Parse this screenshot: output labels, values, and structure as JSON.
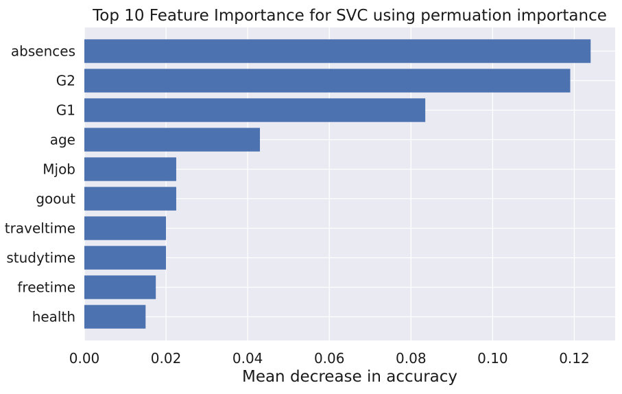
{
  "chart_data": {
    "type": "bar",
    "orientation": "horizontal",
    "title": "Top 10 Feature Importance for SVC using permuation importance",
    "xlabel": "Mean decrease in accuracy",
    "ylabel": "",
    "categories": [
      "absences",
      "G2",
      "G1",
      "age",
      "Mjob",
      "goout",
      "traveltime",
      "studytime",
      "freetime",
      "health"
    ],
    "values": [
      0.124,
      0.119,
      0.0835,
      0.043,
      0.0225,
      0.0225,
      0.02,
      0.02,
      0.0175,
      0.015
    ],
    "xlim": [
      0,
      0.13
    ],
    "xticks": [
      0.0,
      0.02,
      0.04,
      0.06,
      0.08,
      0.1,
      0.12
    ],
    "xtick_labels": [
      "0.00",
      "0.02",
      "0.04",
      "0.06",
      "0.08",
      "0.10",
      "0.12"
    ],
    "grid": true,
    "legend": "none",
    "colors": {
      "bar": "#4c72b0",
      "background": "#eaeaf2",
      "grid": "#ffffff"
    }
  }
}
